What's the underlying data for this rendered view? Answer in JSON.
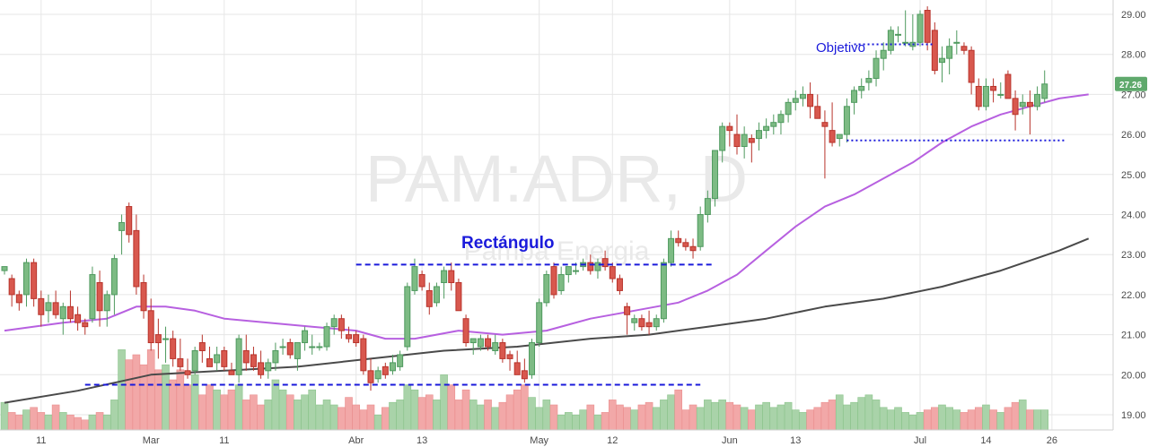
{
  "chart_data": {
    "type": "candlestick",
    "watermark": {
      "symbol": "PAM:ADR, D",
      "name": "Pampa Energia"
    },
    "colors": {
      "up": "#4f9a5f",
      "up_fill": "#7dbb84",
      "down": "#b8332b",
      "down_fill": "#d8584e",
      "vol_up": "#a9d3a9",
      "vol_down": "#f2a8a8",
      "ma_fast": "#b760e0",
      "ma_slow": "#4a4a4a",
      "annotation": "#1a1adb",
      "last_price_bg": "#5fa96c"
    },
    "y_ticks": [
      "19.00",
      "20.00",
      "21.00",
      "22.00",
      "23.00",
      "24.00",
      "25.00",
      "26.00",
      "27.00",
      "28.00",
      "29.00"
    ],
    "ylim": [
      18.5,
      29.2
    ],
    "x_ticks": [
      {
        "label": "11",
        "index": 5
      },
      {
        "label": "Mar",
        "index": 20
      },
      {
        "label": "11",
        "index": 30
      },
      {
        "label": "Abr",
        "index": 48
      },
      {
        "label": "13",
        "index": 57
      },
      {
        "label": "May",
        "index": 73
      },
      {
        "label": "12",
        "index": 83
      },
      {
        "label": "Jun",
        "index": 99
      },
      {
        "label": "13",
        "index": 108
      },
      {
        "label": "Jul",
        "index": 125
      },
      {
        "label": "14",
        "index": 134
      },
      {
        "label": "26",
        "index": 143
      }
    ],
    "candles": [
      [
        22.6,
        22.7,
        22.5,
        22.7
      ],
      [
        22.4,
        22.5,
        21.7,
        22.0
      ],
      [
        22.0,
        22.1,
        21.6,
        21.8
      ],
      [
        22.0,
        22.9,
        21.7,
        22.8
      ],
      [
        22.8,
        22.9,
        21.7,
        21.9
      ],
      [
        21.9,
        22.1,
        21.2,
        21.5
      ],
      [
        21.6,
        22.0,
        21.3,
        21.8
      ],
      [
        21.8,
        22.1,
        21.4,
        21.5
      ],
      [
        21.4,
        21.8,
        21.0,
        21.7
      ],
      [
        21.7,
        22.1,
        21.3,
        21.4
      ],
      [
        21.5,
        21.7,
        21.1,
        21.3
      ],
      [
        21.3,
        21.4,
        21.0,
        21.2
      ],
      [
        21.4,
        22.7,
        21.3,
        22.5
      ],
      [
        22.3,
        22.6,
        21.2,
        21.6
      ],
      [
        21.6,
        22.1,
        21.2,
        22.0
      ],
      [
        22.0,
        23.0,
        21.5,
        22.9
      ],
      [
        23.6,
        24.0,
        23.0,
        23.8
      ],
      [
        24.2,
        24.3,
        23.3,
        23.5
      ],
      [
        23.6,
        24.0,
        22.0,
        22.2
      ],
      [
        22.3,
        22.5,
        21.4,
        21.6
      ],
      [
        21.6,
        21.9,
        20.6,
        20.8
      ],
      [
        21.0,
        21.4,
        20.4,
        20.8
      ],
      [
        20.9,
        21.2,
        20.3,
        20.9
      ],
      [
        20.9,
        21.1,
        20.2,
        20.4
      ],
      [
        20.4,
        20.9,
        20.1,
        20.2
      ],
      [
        20.1,
        20.4,
        19.9,
        20.0
      ],
      [
        20.1,
        20.7,
        20.0,
        20.6
      ],
      [
        20.8,
        21.0,
        20.3,
        20.6
      ],
      [
        20.4,
        20.7,
        20.2,
        20.2
      ],
      [
        20.3,
        20.7,
        20.1,
        20.5
      ],
      [
        20.6,
        20.7,
        20.1,
        20.2
      ],
      [
        20.1,
        20.3,
        20.0,
        20.0
      ],
      [
        20.0,
        21.0,
        19.8,
        20.9
      ],
      [
        20.6,
        21.0,
        20.1,
        20.3
      ],
      [
        20.5,
        20.7,
        20.1,
        20.2
      ],
      [
        20.3,
        20.6,
        19.9,
        20.0
      ],
      [
        20.1,
        20.4,
        19.9,
        20.3
      ],
      [
        20.3,
        20.8,
        20.1,
        20.6
      ],
      [
        20.7,
        20.9,
        20.5,
        20.7
      ],
      [
        20.8,
        20.9,
        20.4,
        20.5
      ],
      [
        20.4,
        20.8,
        20.1,
        20.8
      ],
      [
        20.8,
        21.2,
        20.6,
        21.1
      ],
      [
        20.7,
        21.0,
        20.5,
        20.7
      ],
      [
        20.7,
        20.8,
        20.6,
        20.7
      ],
      [
        20.7,
        21.3,
        20.6,
        21.2
      ],
      [
        21.2,
        21.5,
        21.0,
        21.4
      ],
      [
        21.4,
        21.5,
        20.9,
        21.1
      ],
      [
        21.0,
        21.2,
        20.8,
        20.9
      ],
      [
        21.0,
        21.1,
        20.7,
        20.8
      ],
      [
        20.9,
        21.0,
        20.0,
        20.1
      ],
      [
        20.1,
        20.4,
        19.6,
        19.8
      ],
      [
        19.9,
        20.2,
        19.8,
        20.1
      ],
      [
        20.2,
        20.3,
        19.9,
        20.0
      ],
      [
        20.1,
        20.5,
        20.0,
        20.3
      ],
      [
        20.2,
        20.6,
        20.1,
        20.5
      ],
      [
        20.7,
        22.3,
        20.6,
        22.2
      ],
      [
        22.1,
        22.9,
        22.0,
        22.7
      ],
      [
        22.5,
        22.6,
        22.1,
        22.2
      ],
      [
        22.1,
        22.3,
        21.5,
        21.7
      ],
      [
        21.8,
        22.3,
        21.7,
        22.2
      ],
      [
        22.3,
        22.7,
        21.9,
        22.6
      ],
      [
        22.6,
        22.8,
        22.1,
        22.3
      ],
      [
        22.3,
        22.4,
        21.6,
        21.6
      ],
      [
        21.4,
        21.5,
        20.7,
        20.8
      ],
      [
        20.8,
        20.9,
        20.5,
        20.9
      ],
      [
        20.7,
        21.0,
        20.6,
        20.9
      ],
      [
        20.9,
        21.0,
        20.6,
        20.7
      ],
      [
        20.6,
        21.0,
        20.5,
        20.8
      ],
      [
        20.8,
        20.9,
        20.3,
        20.4
      ],
      [
        20.5,
        20.6,
        20.1,
        20.4
      ],
      [
        20.3,
        20.6,
        20.0,
        20.0
      ],
      [
        20.1,
        20.4,
        19.8,
        19.9
      ],
      [
        20.0,
        20.9,
        19.9,
        20.8
      ],
      [
        20.8,
        21.9,
        20.7,
        21.8
      ],
      [
        21.8,
        22.6,
        21.7,
        22.5
      ],
      [
        22.7,
        22.8,
        21.9,
        22.0
      ],
      [
        22.1,
        22.7,
        22.0,
        22.5
      ],
      [
        22.5,
        22.7,
        22.3,
        22.7
      ],
      [
        22.6,
        22.8,
        22.5,
        22.6
      ],
      [
        22.7,
        22.9,
        22.6,
        22.8
      ],
      [
        22.8,
        23.0,
        22.5,
        22.6
      ],
      [
        22.6,
        22.9,
        22.4,
        22.8
      ],
      [
        22.9,
        23.1,
        22.6,
        22.7
      ],
      [
        22.7,
        22.8,
        22.3,
        22.4
      ],
      [
        22.4,
        22.5,
        22.0,
        22.1
      ],
      [
        21.7,
        21.8,
        21.0,
        21.5
      ],
      [
        21.3,
        21.5,
        21.1,
        21.4
      ],
      [
        21.4,
        21.5,
        21.1,
        21.2
      ],
      [
        21.3,
        21.6,
        21.0,
        21.2
      ],
      [
        21.2,
        21.5,
        21.1,
        21.4
      ],
      [
        21.4,
        22.9,
        21.3,
        22.8
      ],
      [
        22.8,
        23.6,
        22.7,
        23.4
      ],
      [
        23.4,
        23.6,
        23.2,
        23.3
      ],
      [
        23.3,
        23.4,
        23.1,
        23.2
      ],
      [
        23.2,
        23.4,
        22.9,
        23.1
      ],
      [
        23.2,
        24.2,
        23.1,
        24.0
      ],
      [
        24.0,
        24.6,
        23.8,
        24.4
      ],
      [
        24.4,
        25.6,
        24.2,
        25.6
      ],
      [
        25.6,
        26.3,
        25.3,
        26.2
      ],
      [
        26.2,
        26.3,
        25.7,
        26.1
      ],
      [
        26.0,
        26.5,
        25.5,
        25.7
      ],
      [
        25.7,
        26.2,
        25.4,
        26.0
      ],
      [
        25.9,
        26.0,
        25.3,
        25.8
      ],
      [
        25.9,
        26.3,
        25.6,
        26.1
      ],
      [
        26.1,
        26.4,
        25.9,
        26.2
      ],
      [
        26.2,
        26.5,
        26.0,
        26.3
      ],
      [
        26.3,
        26.6,
        26.0,
        26.5
      ],
      [
        26.5,
        26.9,
        26.3,
        26.8
      ],
      [
        26.8,
        27.1,
        26.6,
        26.9
      ],
      [
        26.9,
        27.2,
        26.7,
        27.0
      ],
      [
        27.0,
        27.3,
        26.4,
        26.7
      ],
      [
        26.7,
        27.0,
        26.4,
        26.4
      ],
      [
        26.3,
        26.6,
        24.9,
        26.2
      ],
      [
        26.1,
        26.8,
        25.7,
        25.8
      ],
      [
        25.9,
        26.0,
        25.7,
        26.0
      ],
      [
        26.0,
        26.9,
        25.8,
        26.7
      ],
      [
        26.8,
        27.2,
        26.5,
        27.1
      ],
      [
        27.1,
        27.4,
        26.9,
        27.2
      ],
      [
        27.3,
        27.6,
        27.1,
        27.4
      ],
      [
        27.4,
        28.1,
        27.2,
        27.9
      ],
      [
        27.9,
        28.3,
        27.6,
        28.1
      ],
      [
        28.1,
        28.7,
        28.0,
        28.6
      ],
      [
        28.5,
        28.7,
        28.3,
        28.5
      ],
      [
        28.3,
        29.1,
        28.2,
        28.3
      ],
      [
        28.2,
        29.0,
        28.1,
        28.3
      ],
      [
        28.3,
        29.1,
        28.2,
        29.0
      ],
      [
        29.1,
        29.2,
        28.1,
        28.3
      ],
      [
        28.6,
        28.8,
        27.5,
        27.6
      ],
      [
        27.8,
        28.2,
        27.3,
        27.9
      ],
      [
        27.9,
        28.4,
        27.5,
        28.2
      ],
      [
        28.3,
        28.6,
        28.0,
        28.3
      ],
      [
        28.2,
        28.3,
        28.0,
        28.1
      ],
      [
        28.1,
        28.2,
        27.0,
        27.3
      ],
      [
        27.2,
        27.4,
        26.6,
        26.7
      ],
      [
        26.7,
        27.4,
        26.6,
        27.2
      ],
      [
        27.2,
        27.4,
        26.8,
        27.1
      ],
      [
        27.0,
        27.3,
        26.9,
        27.0
      ],
      [
        27.5,
        27.6,
        27.0,
        26.9
      ],
      [
        26.9,
        27.1,
        26.1,
        26.5
      ],
      [
        26.7,
        27.0,
        26.5,
        26.8
      ],
      [
        26.8,
        27.1,
        26.0,
        26.7
      ],
      [
        26.7,
        27.2,
        26.6,
        27.0
      ],
      [
        26.9,
        27.6,
        26.8,
        27.26
      ]
    ],
    "volume_ratio": [
      0.55,
      0.35,
      0.3,
      0.4,
      0.45,
      0.35,
      0.3,
      0.5,
      0.35,
      0.3,
      0.25,
      0.2,
      0.3,
      0.35,
      0.3,
      0.6,
      1.6,
      1.4,
      1.5,
      1.3,
      1.6,
      1.2,
      1.3,
      1.0,
      1.2,
      0.9,
      1.1,
      0.7,
      0.9,
      0.8,
      0.7,
      0.8,
      0.9,
      0.6,
      0.7,
      0.5,
      0.6,
      1.0,
      0.8,
      0.7,
      0.6,
      0.7,
      0.8,
      0.5,
      0.6,
      0.5,
      0.45,
      0.65,
      0.5,
      0.4,
      0.5,
      0.3,
      0.45,
      0.55,
      0.6,
      0.9,
      0.8,
      0.65,
      0.7,
      0.6,
      1.1,
      0.9,
      0.6,
      0.8,
      0.6,
      0.5,
      0.6,
      0.45,
      0.55,
      0.7,
      0.8,
      0.9,
      0.65,
      0.45,
      0.6,
      0.5,
      0.3,
      0.35,
      0.3,
      0.4,
      0.5,
      0.3,
      0.35,
      0.6,
      0.5,
      0.45,
      0.4,
      0.5,
      0.55,
      0.45,
      0.6,
      0.7,
      0.8,
      0.4,
      0.5,
      0.45,
      0.6,
      0.55,
      0.6,
      0.55,
      0.5,
      0.45,
      0.4,
      0.5,
      0.55,
      0.45,
      0.5,
      0.55,
      0.4,
      0.35,
      0.4,
      0.45,
      0.55,
      0.6,
      0.7,
      0.5,
      0.55,
      0.65,
      0.7,
      0.6,
      0.45,
      0.4,
      0.45,
      0.35,
      0.3,
      0.35,
      0.4,
      0.45,
      0.5,
      0.45,
      0.4,
      0.35,
      0.4,
      0.45,
      0.5,
      0.4,
      0.35,
      0.45,
      0.55,
      0.6
    ],
    "ma_fast": [
      [
        0,
        21.1
      ],
      [
        8,
        21.3
      ],
      [
        14,
        21.4
      ],
      [
        18,
        21.7
      ],
      [
        22,
        21.7
      ],
      [
        26,
        21.6
      ],
      [
        30,
        21.4
      ],
      [
        36,
        21.3
      ],
      [
        42,
        21.2
      ],
      [
        48,
        21.1
      ],
      [
        52,
        20.9
      ],
      [
        56,
        20.9
      ],
      [
        62,
        21.1
      ],
      [
        68,
        21.0
      ],
      [
        74,
        21.1
      ],
      [
        80,
        21.4
      ],
      [
        86,
        21.6
      ],
      [
        92,
        21.8
      ],
      [
        96,
        22.1
      ],
      [
        100,
        22.5
      ],
      [
        104,
        23.1
      ],
      [
        108,
        23.7
      ],
      [
        112,
        24.2
      ],
      [
        116,
        24.5
      ],
      [
        120,
        24.9
      ],
      [
        124,
        25.3
      ],
      [
        128,
        25.8
      ],
      [
        132,
        26.2
      ],
      [
        136,
        26.5
      ],
      [
        140,
        26.7
      ],
      [
        144,
        26.9
      ],
      [
        148,
        27.0
      ]
    ],
    "ma_slow": [
      [
        0,
        19.3
      ],
      [
        10,
        19.6
      ],
      [
        20,
        20.0
      ],
      [
        30,
        20.1
      ],
      [
        40,
        20.2
      ],
      [
        50,
        20.4
      ],
      [
        60,
        20.6
      ],
      [
        70,
        20.7
      ],
      [
        80,
        20.9
      ],
      [
        88,
        21.0
      ],
      [
        96,
        21.2
      ],
      [
        104,
        21.4
      ],
      [
        112,
        21.7
      ],
      [
        120,
        21.9
      ],
      [
        128,
        22.2
      ],
      [
        136,
        22.6
      ],
      [
        144,
        23.1
      ],
      [
        148,
        23.4
      ]
    ],
    "last_price": "27.26",
    "annotations": {
      "rectangle_label": "Rectángulo",
      "objective_label": "Objetivo",
      "rect_top": {
        "y": 22.75,
        "x0": 48,
        "x1": 97
      },
      "rect_bottom": {
        "y": 19.75,
        "x0": 11,
        "x1": 95
      },
      "objective_line": {
        "y": 28.25,
        "x0": 116,
        "x1": 127
      },
      "support_line": {
        "y": 25.85,
        "x0": 115,
        "x1": 145
      }
    }
  }
}
